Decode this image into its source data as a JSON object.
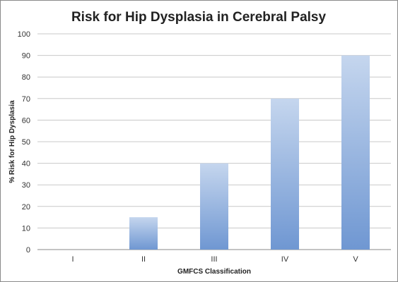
{
  "chart_data": {
    "type": "bar",
    "title": "Risk for Hip Dysplasia in Cerebral Palsy",
    "xlabel": "GMFCS Classification",
    "ylabel": "% Risk for Hip Dysplasia",
    "categories": [
      "I",
      "II",
      "III",
      "IV",
      "V"
    ],
    "values": [
      0,
      15,
      40,
      70,
      90
    ],
    "ylim": [
      0,
      100
    ],
    "yticks": [
      "0",
      "10",
      "20",
      "30",
      "40",
      "50",
      "60",
      "70",
      "80",
      "90",
      "100"
    ],
    "grid": true,
    "legend": "none",
    "bar_color_top": "#c5d6ee",
    "bar_color_bottom": "#6f97d2"
  }
}
